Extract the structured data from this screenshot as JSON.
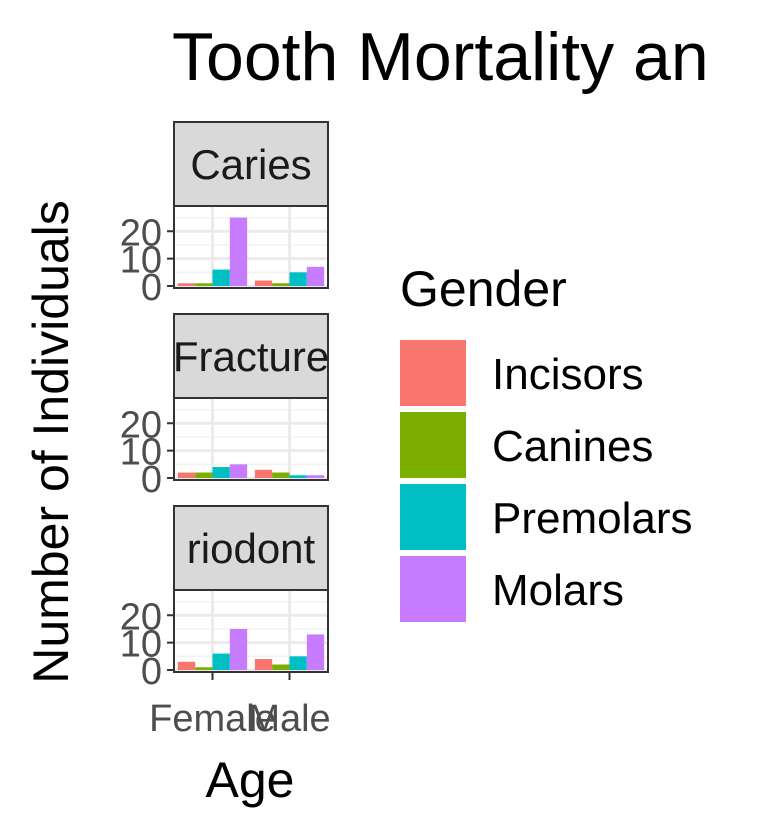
{
  "chart_data": {
    "type": "bar",
    "title": "Tooth Mortality an",
    "xlabel": "Age",
    "ylabel": "Number of Individuals",
    "categories": [
      "Female",
      "Male"
    ],
    "ylim": [
      0,
      25
    ],
    "y_ticks": [
      0,
      10,
      20
    ],
    "y_tick_labels": [
      "0",
      "10",
      "20"
    ],
    "grid": true,
    "legend": {
      "title": "Gender",
      "placement": "right",
      "entries": [
        "Incisors",
        "Canines",
        "Premolars",
        "Molars"
      ]
    },
    "colors": {
      "Incisors": "#F8766D",
      "Canines": "#7CAE00",
      "Premolars": "#00BFC4",
      "Molars": "#C77CFF"
    },
    "facets": [
      {
        "label": "Caries",
        "series": [
          {
            "name": "Incisors",
            "values": [
              1,
              2
            ]
          },
          {
            "name": "Canines",
            "values": [
              1,
              1
            ]
          },
          {
            "name": "Premolars",
            "values": [
              6,
              5
            ]
          },
          {
            "name": "Molars",
            "values": [
              25,
              7
            ]
          }
        ]
      },
      {
        "label": "Fracture",
        "series": [
          {
            "name": "Incisors",
            "values": [
              2,
              3
            ]
          },
          {
            "name": "Canines",
            "values": [
              2,
              2
            ]
          },
          {
            "name": "Premolars",
            "values": [
              4,
              1
            ]
          },
          {
            "name": "Molars",
            "values": [
              5,
              1
            ]
          }
        ]
      },
      {
        "label": "riodont",
        "series": [
          {
            "name": "Incisors",
            "values": [
              3,
              4
            ]
          },
          {
            "name": "Canines",
            "values": [
              1,
              2
            ]
          },
          {
            "name": "Premolars",
            "values": [
              6,
              5
            ]
          },
          {
            "name": "Molars",
            "values": [
              15,
              13
            ]
          }
        ]
      }
    ]
  }
}
